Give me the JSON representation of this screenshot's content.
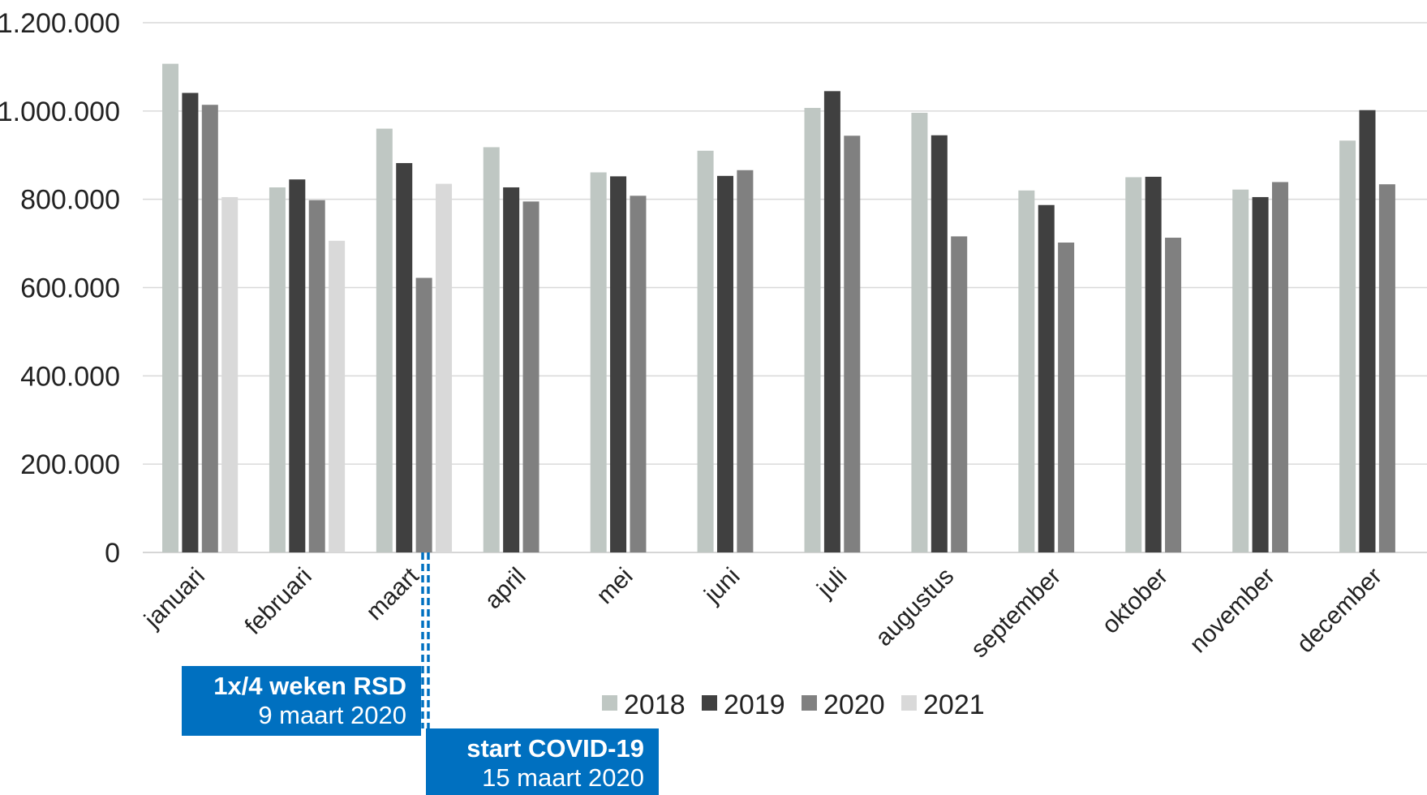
{
  "chart_data": {
    "type": "bar",
    "categories": [
      "januari",
      "februari",
      "maart",
      "april",
      "mei",
      "juni",
      "juli",
      "augustus",
      "september",
      "oktober",
      "november",
      "december"
    ],
    "series": [
      {
        "name": "2018",
        "color": "#BFC7C3",
        "values": [
          1107000,
          827000,
          960000,
          918000,
          861000,
          910000,
          1007000,
          996000,
          820000,
          850000,
          822000,
          933000
        ]
      },
      {
        "name": "2019",
        "color": "#404040",
        "values": [
          1041000,
          845000,
          882000,
          827000,
          852000,
          853000,
          1045000,
          945000,
          787000,
          851000,
          805000,
          1002000
        ]
      },
      {
        "name": "2020",
        "color": "#808080",
        "values": [
          1014000,
          798000,
          622000,
          795000,
          808000,
          866000,
          944000,
          716000,
          702000,
          713000,
          839000,
          834000
        ]
      },
      {
        "name": "2021",
        "color": "#D9D9D9",
        "values": [
          805000,
          706000,
          835000,
          null,
          null,
          null,
          null,
          null,
          null,
          null,
          null,
          null
        ]
      }
    ],
    "ylim": [
      0,
      1200000
    ],
    "yticks": [
      {
        "value": 0,
        "label": "0"
      },
      {
        "value": 200000,
        "label": "200.000"
      },
      {
        "value": 400000,
        "label": "400.000"
      },
      {
        "value": 600000,
        "label": "600.000"
      },
      {
        "value": 800000,
        "label": "800.000"
      },
      {
        "value": 1000000,
        "label": "1.000.000"
      },
      {
        "value": 1200000,
        "label": "1.200.000"
      }
    ],
    "grid": true,
    "legend_position": "bottom",
    "annotations": [
      {
        "title": "1x/4 weken RSD",
        "subtitle": "9 maart 2020",
        "color": "#0070C0"
      },
      {
        "title": "start COVID-19",
        "subtitle": "15 maart 2020",
        "color": "#0070C0"
      }
    ]
  }
}
